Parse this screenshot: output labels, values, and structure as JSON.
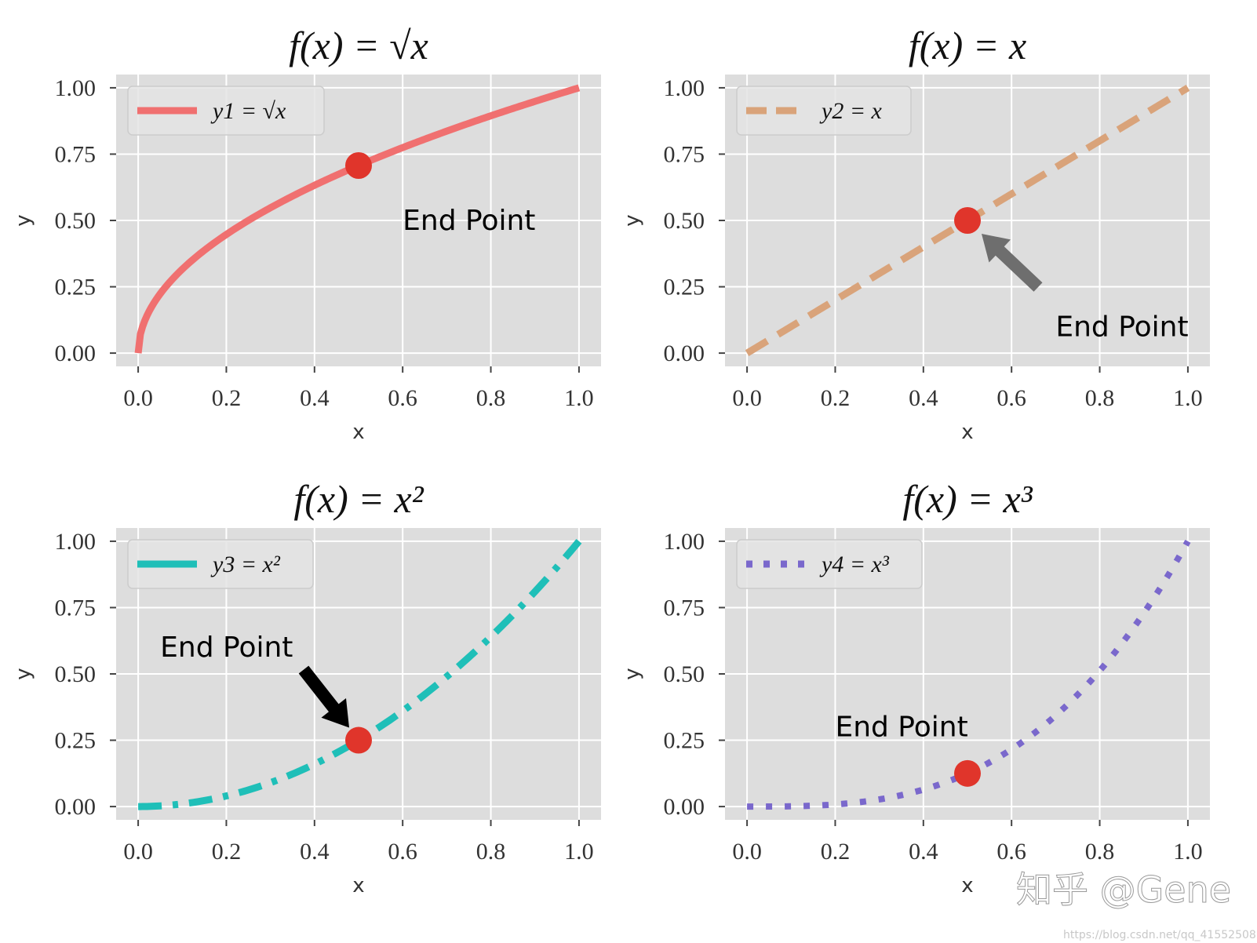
{
  "watermark": {
    "text": "知乎 @Gene",
    "url": "https://blog.csdn.net/qq_41552508"
  },
  "chart_data": [
    {
      "type": "line",
      "title": "f(x) = √x",
      "xlabel": "x",
      "ylabel": "y",
      "xlim": [
        -0.05,
        1.05
      ],
      "ylim": [
        -0.05,
        1.05
      ],
      "xticks": [
        "0.0",
        "0.2",
        "0.4",
        "0.6",
        "0.8",
        "1.0"
      ],
      "yticks": [
        "0.00",
        "0.25",
        "0.50",
        "0.75",
        "1.00"
      ],
      "grid": true,
      "legend_position": "upper-left",
      "series": [
        {
          "name": "y1 = √x",
          "function": "sqrt",
          "x_range": [
            0,
            1
          ],
          "color": "#f07070",
          "line_style": "solid"
        }
      ],
      "marker": {
        "x": 0.5,
        "y": 0.707,
        "color": "#e0352b"
      },
      "annotation": {
        "text": "End Point",
        "x": 0.6,
        "y": 0.5,
        "arrow": false
      }
    },
    {
      "type": "line",
      "title": "f(x) = x",
      "xlabel": "x",
      "ylabel": "y",
      "xlim": [
        -0.05,
        1.05
      ],
      "ylim": [
        -0.05,
        1.05
      ],
      "xticks": [
        "0.0",
        "0.2",
        "0.4",
        "0.6",
        "0.8",
        "1.0"
      ],
      "yticks": [
        "0.00",
        "0.25",
        "0.50",
        "0.75",
        "1.00"
      ],
      "grid": true,
      "legend_position": "upper-left",
      "series": [
        {
          "name": "y2 = x",
          "function": "linear",
          "x_range": [
            0,
            1
          ],
          "color": "#d9a37a",
          "line_style": "dashed"
        }
      ],
      "marker": {
        "x": 0.5,
        "y": 0.5,
        "color": "#e0352b"
      },
      "annotation": {
        "text": "End Point",
        "x": 0.7,
        "y": 0.1,
        "arrow": true,
        "arrow_color": "#6e6e6e"
      }
    },
    {
      "type": "line",
      "title": "f(x) = x²",
      "xlabel": "x",
      "ylabel": "y",
      "xlim": [
        -0.05,
        1.05
      ],
      "ylim": [
        -0.05,
        1.05
      ],
      "xticks": [
        "0.0",
        "0.2",
        "0.4",
        "0.6",
        "0.8",
        "1.0"
      ],
      "yticks": [
        "0.00",
        "0.25",
        "0.50",
        "0.75",
        "1.00"
      ],
      "grid": true,
      "legend_position": "upper-left",
      "series": [
        {
          "name": "y3 = x²",
          "function": "square",
          "x_range": [
            0,
            1
          ],
          "color": "#1fbfb8",
          "line_style": "dashdot"
        }
      ],
      "marker": {
        "x": 0.5,
        "y": 0.25,
        "color": "#e0352b"
      },
      "annotation": {
        "text": "End Point",
        "x": 0.05,
        "y": 0.6,
        "arrow": true,
        "arrow_color": "#000000"
      }
    },
    {
      "type": "line",
      "title": "f(x) = x³",
      "xlabel": "x",
      "ylabel": "y",
      "xlim": [
        -0.05,
        1.05
      ],
      "ylim": [
        -0.05,
        1.05
      ],
      "xticks": [
        "0.0",
        "0.2",
        "0.4",
        "0.6",
        "0.8",
        "1.0"
      ],
      "yticks": [
        "0.00",
        "0.25",
        "0.50",
        "0.75",
        "1.00"
      ],
      "grid": true,
      "legend_position": "upper-left",
      "series": [
        {
          "name": "y4 = x³",
          "function": "cube",
          "x_range": [
            0,
            1
          ],
          "color": "#7a68cc",
          "line_style": "dotted"
        }
      ],
      "marker": {
        "x": 0.5,
        "y": 0.125,
        "color": "#e0352b"
      },
      "annotation": {
        "text": "End Point",
        "x": 0.2,
        "y": 0.3,
        "arrow": false
      }
    }
  ]
}
